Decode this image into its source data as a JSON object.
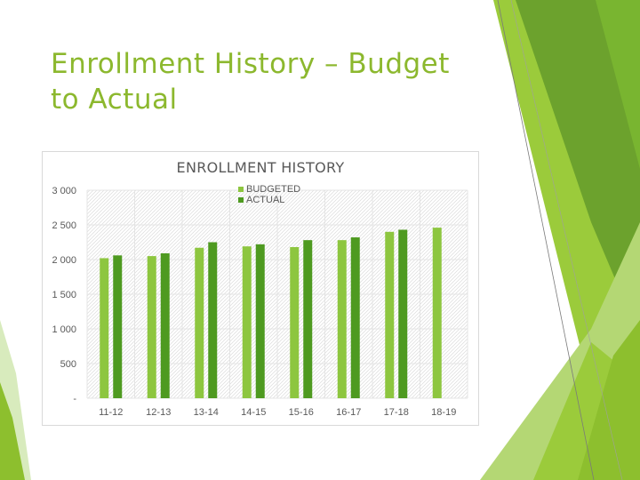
{
  "slide": {
    "title_line1": "Enrollment History – Budget",
    "title_line2": "to Actual",
    "title_color": "#8CB82E"
  },
  "theme": {
    "colors": [
      "#9BCB3B",
      "#8DBF2E",
      "#6CA22D",
      "#B4D774",
      "#D8EBBD",
      "#79B530"
    ]
  },
  "chart_data": {
    "type": "bar",
    "title": "ENROLLMENT HISTORY",
    "categories": [
      "11-12",
      "12-13",
      "13-14",
      "14-15",
      "15-16",
      "16-17",
      "17-18",
      "18-19"
    ],
    "series": [
      {
        "name": "BUDGETED",
        "color": "#8DC63F",
        "values": [
          2020,
          2050,
          2170,
          2190,
          2180,
          2280,
          2400,
          2460
        ]
      },
      {
        "name": "ACTUAL",
        "color": "#4E9A20",
        "values": [
          2060,
          2090,
          2250,
          2220,
          2280,
          2320,
          2430,
          null
        ]
      }
    ],
    "y_ticks": [
      {
        "value": 0,
        "label": "-"
      },
      {
        "value": 500,
        "label": "500"
      },
      {
        "value": 1000,
        "label": "1 000"
      },
      {
        "value": 1500,
        "label": "1 500"
      },
      {
        "value": 2000,
        "label": "2 000"
      },
      {
        "value": 2500,
        "label": "2 500"
      },
      {
        "value": 3000,
        "label": "3 000"
      }
    ],
    "ylim": [
      0,
      3000
    ],
    "grid": true,
    "legend_position": "top"
  }
}
